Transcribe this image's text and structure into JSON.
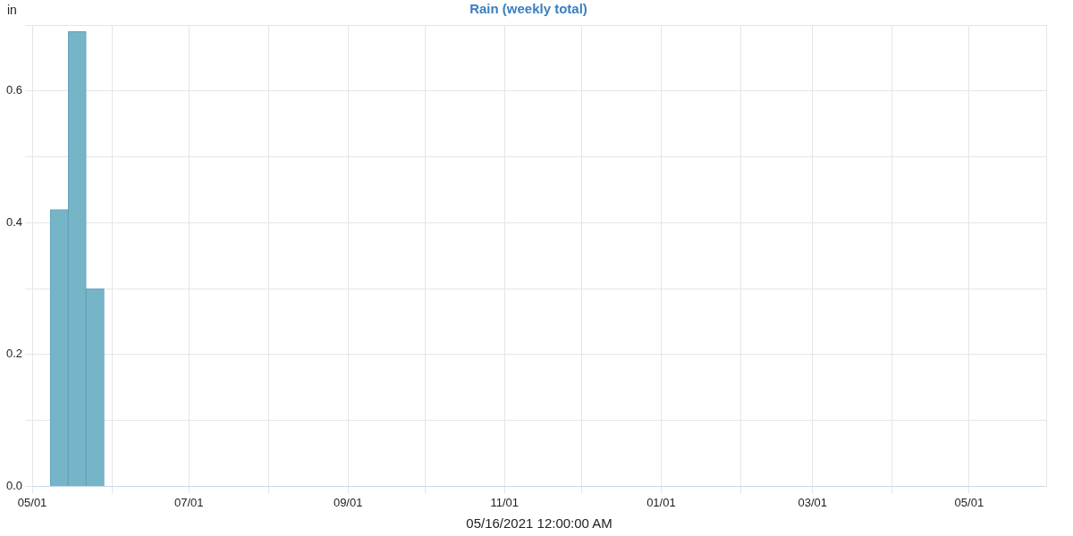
{
  "chart_data": {
    "type": "bar",
    "title": "Rain (weekly total)",
    "xlabel": "05/16/2021 12:00:00 AM",
    "ylabel": "in",
    "x": [
      "2021-05-11T12:00",
      "2021-05-18T12:00",
      "2021-05-25T12:00",
      "2021-06-01T12:00",
      "2021-06-08T12:00",
      "2021-06-15T12:00",
      "2021-06-22T12:00",
      "2021-06-29T12:00",
      "2021-07-06T12:00",
      "2021-07-13T12:00",
      "2021-07-20T12:00",
      "2021-07-27T12:00",
      "2021-08-03T12:00",
      "2021-08-10T12:00",
      "2021-08-17T12:00",
      "2021-08-24T12:00",
      "2021-08-31T12:00",
      "2021-09-07T12:00",
      "2021-09-14T12:00",
      "2021-09-21T12:00",
      "2021-09-28T12:00",
      "2021-10-05T12:00",
      "2021-10-12T12:00",
      "2021-10-19T12:00",
      "2021-10-26T12:00",
      "2021-11-02T12:00",
      "2021-11-09T12:00",
      "2021-11-16T12:00",
      "2021-11-23T12:00",
      "2021-11-30T12:00",
      "2021-12-07T12:00",
      "2021-12-14T12:00",
      "2021-12-21T12:00",
      "2021-12-28T12:00",
      "2022-01-04T12:00",
      "2022-01-11T12:00",
      "2022-01-18T12:00",
      "2022-01-25T12:00",
      "2022-02-01T12:00",
      "2022-02-08T12:00",
      "2022-02-15T12:00",
      "2022-02-22T12:00",
      "2022-03-01T12:00",
      "2022-03-08T12:00",
      "2022-03-15T12:00",
      "2022-03-22T12:00",
      "2022-03-29T12:00",
      "2022-04-05T12:00",
      "2022-04-12T12:00",
      "2022-04-19T12:00",
      "2022-04-26T12:00",
      "2022-05-03T12:00",
      "2022-05-10T12:00",
      "2022-05-17T12:00"
    ],
    "values": [
      0.42,
      0.69,
      0.3,
      0,
      0,
      0,
      0,
      0,
      0,
      0,
      0,
      0,
      0,
      0,
      0,
      0,
      0,
      0,
      0,
      0,
      0,
      0,
      0,
      0,
      0,
      0,
      0,
      0,
      0,
      0,
      0,
      0,
      0,
      0,
      0,
      0,
      0,
      0,
      0,
      0,
      0,
      0,
      0,
      0,
      0,
      0,
      0,
      0,
      0,
      0,
      0,
      0,
      0,
      0
    ],
    "color": "#76b4c8",
    "xlim": [
      "2021-05-01",
      "2022-05-31"
    ],
    "xticks": [
      {
        "value": "2021-05-01",
        "label": "05/01"
      },
      {
        "value": "2021-06-01",
        "label": null
      },
      {
        "value": "2021-07-01",
        "label": "07/01"
      },
      {
        "value": "2021-08-01",
        "label": null
      },
      {
        "value": "2021-09-01",
        "label": "09/01"
      },
      {
        "value": "2021-10-01",
        "label": null
      },
      {
        "value": "2021-11-01",
        "label": "11/01"
      },
      {
        "value": "2021-12-01",
        "label": null
      },
      {
        "value": "2022-01-01",
        "label": "01/01"
      },
      {
        "value": "2022-02-01",
        "label": null
      },
      {
        "value": "2022-03-01",
        "label": "03/01"
      },
      {
        "value": "2022-04-01",
        "label": null
      },
      {
        "value": "2022-05-01",
        "label": "05/01"
      }
    ],
    "ylim": [
      0,
      0.7
    ],
    "yticks": [
      {
        "value": 0,
        "label": "0.0"
      },
      {
        "value": 0.1,
        "label": null
      },
      {
        "value": 0.2,
        "label": "0.2"
      },
      {
        "value": 0.3,
        "label": null
      },
      {
        "value": 0.4,
        "label": "0.4"
      },
      {
        "value": 0.5,
        "label": null
      },
      {
        "value": 0.6,
        "label": "0.6"
      },
      {
        "value": 0.7,
        "label": null
      }
    ],
    "grid": true,
    "legend": false
  }
}
